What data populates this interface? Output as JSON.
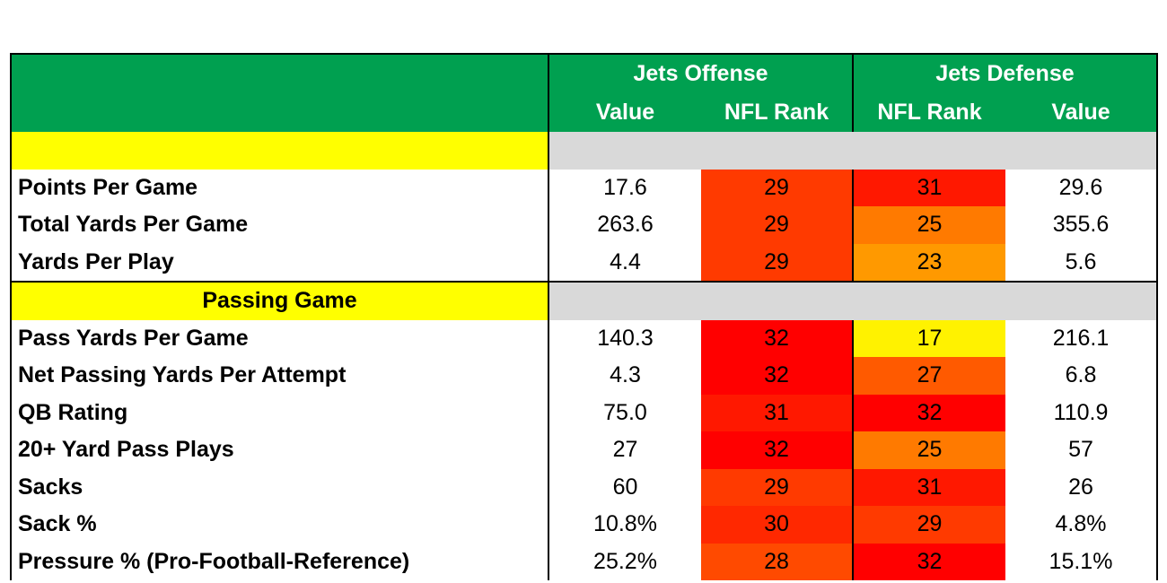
{
  "header": {
    "offense_title": "Jets Offense",
    "defense_title": "Jets Defense",
    "offense_col1": "Value",
    "offense_col2": "NFL Rank",
    "defense_col1": "NFL Rank",
    "defense_col2": "Value"
  },
  "colors": {
    "header_green": "#00a050",
    "section_yellow": "#ffff00",
    "section_grey": "#d9d9d9",
    "rank_scale": {
      "17": "#fff200",
      "23": "#ff9900",
      "25": "#ff7a00",
      "27": "#ff5a00",
      "28": "#ff4a00",
      "29": "#ff3a00",
      "30": "#ff2800",
      "31": "#ff1800",
      "32": "#ff0000"
    }
  },
  "chart_data": {
    "type": "table",
    "columns": [
      "Offense Value",
      "Offense NFL Rank",
      "Defense NFL Rank",
      "Defense Value"
    ],
    "sections": [
      {
        "title": "",
        "rows": [
          {
            "label": "Points Per Game",
            "off_value": "17.6",
            "off_rank": 29,
            "def_rank": 31,
            "def_value": "29.6"
          },
          {
            "label": "Total Yards Per Game",
            "off_value": "263.6",
            "off_rank": 29,
            "def_rank": 25,
            "def_value": "355.6"
          },
          {
            "label": "Yards Per Play",
            "off_value": "4.4",
            "off_rank": 29,
            "def_rank": 23,
            "def_value": "5.6"
          }
        ]
      },
      {
        "title": "Passing Game",
        "rows": [
          {
            "label": "Pass Yards Per Game",
            "off_value": "140.3",
            "off_rank": 32,
            "def_rank": 17,
            "def_value": "216.1"
          },
          {
            "label": "Net Passing Yards Per Attempt",
            "off_value": "4.3",
            "off_rank": 32,
            "def_rank": 27,
            "def_value": "6.8"
          },
          {
            "label": "QB Rating",
            "off_value": "75.0",
            "off_rank": 31,
            "def_rank": 32,
            "def_value": "110.9"
          },
          {
            "label": "20+ Yard Pass Plays",
            "off_value": "27",
            "off_rank": 32,
            "def_rank": 25,
            "def_value": "57"
          },
          {
            "label": "Sacks",
            "off_value": "60",
            "off_rank": 29,
            "def_rank": 31,
            "def_value": "26"
          },
          {
            "label": "Sack %",
            "off_value": "10.8%",
            "off_rank": 30,
            "def_rank": 29,
            "def_value": "4.8%"
          },
          {
            "label": "Pressure % (Pro-Football-Reference)",
            "off_value": "25.2%",
            "off_rank": 28,
            "def_rank": 32,
            "def_value": "15.1%"
          }
        ]
      }
    ]
  }
}
